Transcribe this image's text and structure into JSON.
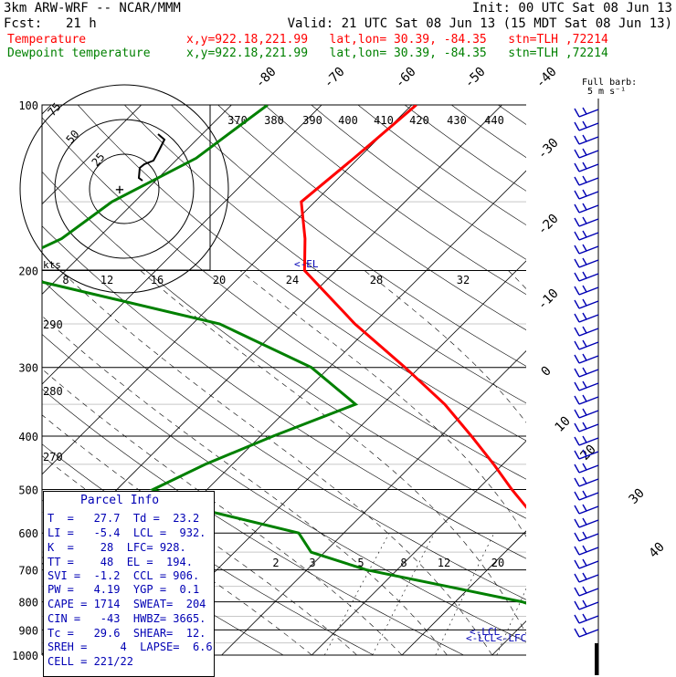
{
  "header": {
    "model": "3km ARW-WRF -- NCAR/MMM",
    "init": "Init: 00 UTC Sat 08 Jun 13",
    "fcst_label": "Fcst:",
    "fcst_value": "21 h",
    "valid": "Valid: 21 UTC Sat 08 Jun 13 (15 MDT Sat 08 Jun 13)",
    "temp_label": "Temperature",
    "temp_info": "x,y=922.18,221.99   lat,lon= 30.39, -84.35   stn=TLH ,72214",
    "dew_label": "Dewpoint temperature",
    "dew_info": "x,y=922.18,221.99   lat,lon= 30.39, -84.35   stn=TLH ,72214",
    "temp_color": "#ff0000",
    "dew_color": "#008000"
  },
  "wind_legend": {
    "line1": "Full barb:",
    "line2": "5 m s⁻¹"
  },
  "hodograph": {
    "units_label": "kts",
    "ring_labels": [
      "75",
      "50",
      "25"
    ]
  },
  "el_label": "<-EL",
  "lcl_label": "<-LCL",
  "lfc_label": "<-LCL<-LFC",
  "parcel_info": {
    "title": "Parcel Info",
    "rows": [
      "T  =   27.7  Td =  23.2",
      "LI =   -5.4  LCL =  932.",
      "K  =    28  LFC= 928.",
      "TT =    48  EL =  194.",
      "SVI =  -1.2  CCL = 906.",
      "PW =   4.19  YGP =  0.1",
      "CAPE = 1714  SWEAT=  204",
      "CIN =   -43  HWBZ= 3665.",
      "Tc =   29.6  SHEAR=  12.",
      "SREH =     4  LAPSE=  6.6",
      "CELL = 221/22"
    ]
  },
  "chart_data": {
    "type": "line",
    "title": "",
    "xlabel": "",
    "ylabel": "",
    "y_scale": "log pressure (hPa)",
    "pressure_ticks": [
      100,
      200,
      300,
      400,
      500,
      600,
      700,
      800,
      900,
      1000
    ],
    "isotherm_labels": [
      "-80",
      "-70",
      "-60",
      "-50",
      "-40",
      "-30",
      "-20",
      "-10",
      "0",
      "10",
      "20",
      "30",
      "40"
    ],
    "theta_labels_top": [
      "370",
      "380",
      "390",
      "400",
      "410",
      "420",
      "430",
      "440"
    ],
    "theta_labels_left": [
      "290",
      "280",
      "270"
    ],
    "mixing_ratio_labels": [
      "2",
      "3",
      "5",
      "8",
      "12",
      "20"
    ],
    "hodo_speed_labels": [
      "8",
      "12",
      "16",
      "20",
      "24",
      "28",
      "32"
    ],
    "series": [
      {
        "name": "Temperature",
        "color": "#ff0000",
        "x_pressure_hPa": [
          1000,
          975,
          950,
          925,
          910,
          900,
          875,
          850,
          800,
          750,
          700,
          650,
          600,
          550,
          500,
          450,
          400,
          350,
          300,
          250,
          200,
          175,
          150,
          125,
          100
        ],
        "y_temperature_C": [
          31.0,
          28.5,
          27.3,
          25.8,
          24.2,
          22.7,
          20.0,
          18.6,
          15.3,
          12.6,
          9.4,
          6.1,
          3.1,
          -1.6,
          -6.2,
          -11.0,
          -16.6,
          -23.1,
          -31.6,
          -42.0,
          -53.5,
          -57.0,
          -61.5,
          -60.5,
          -59.5
        ]
      },
      {
        "name": "Dewpoint temperature",
        "color": "#008000",
        "x_pressure_hPa": [
          1000,
          975,
          950,
          925,
          910,
          900,
          875,
          850,
          800,
          750,
          700,
          650,
          600,
          550,
          500,
          450,
          400,
          350,
          300,
          250,
          200,
          175,
          150,
          125,
          100
        ],
        "y_temperature_C": [
          23.2,
          23.0,
          22.0,
          21.5,
          20.0,
          16.2,
          16.0,
          14.1,
          7.4,
          -2.6,
          -13.4,
          -21.5,
          -25.0,
          -36.8,
          -46.0,
          -43.0,
          -38.6,
          -33.0,
          -42.0,
          -57.0,
          -88.0,
          -84.0,
          -82.5,
          -78.0,
          -76.0
        ]
      }
    ]
  }
}
